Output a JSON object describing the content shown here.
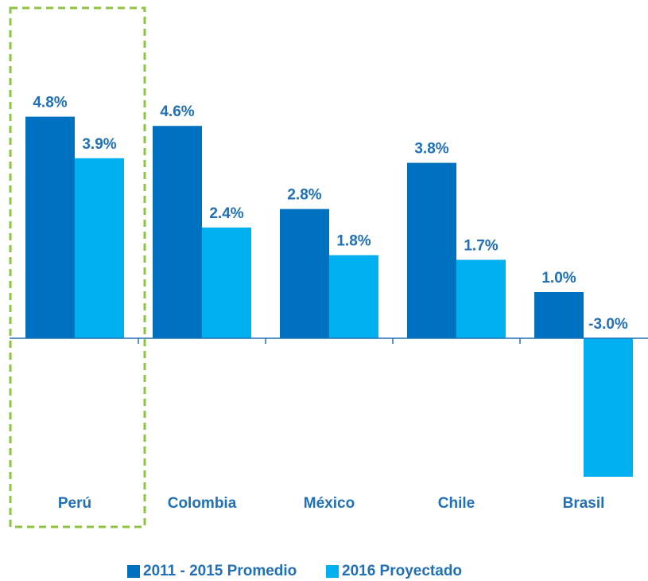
{
  "chart_data": {
    "type": "bar",
    "categories": [
      "Perú",
      "Colombia",
      "México",
      "Chile",
      "Brasil"
    ],
    "series": [
      {
        "name": "2011 - 2015 Promedio",
        "color": "#0070c0",
        "values": [
          4.8,
          4.6,
          2.8,
          3.8,
          1.0
        ],
        "value_labels": [
          "4.8%",
          "4.6%",
          "2.8%",
          "3.8%",
          "1.0%"
        ]
      },
      {
        "name": "2016 Proyectado",
        "color": "#00b0f0",
        "values": [
          3.9,
          2.4,
          1.8,
          1.7,
          -3.0
        ],
        "value_labels": [
          "3.9%",
          "2.4%",
          "1.8%",
          "1.7%",
          "-3.0%"
        ]
      }
    ],
    "ylim": [
      -3.5,
      5.5
    ],
    "legend": "bottom"
  }
}
